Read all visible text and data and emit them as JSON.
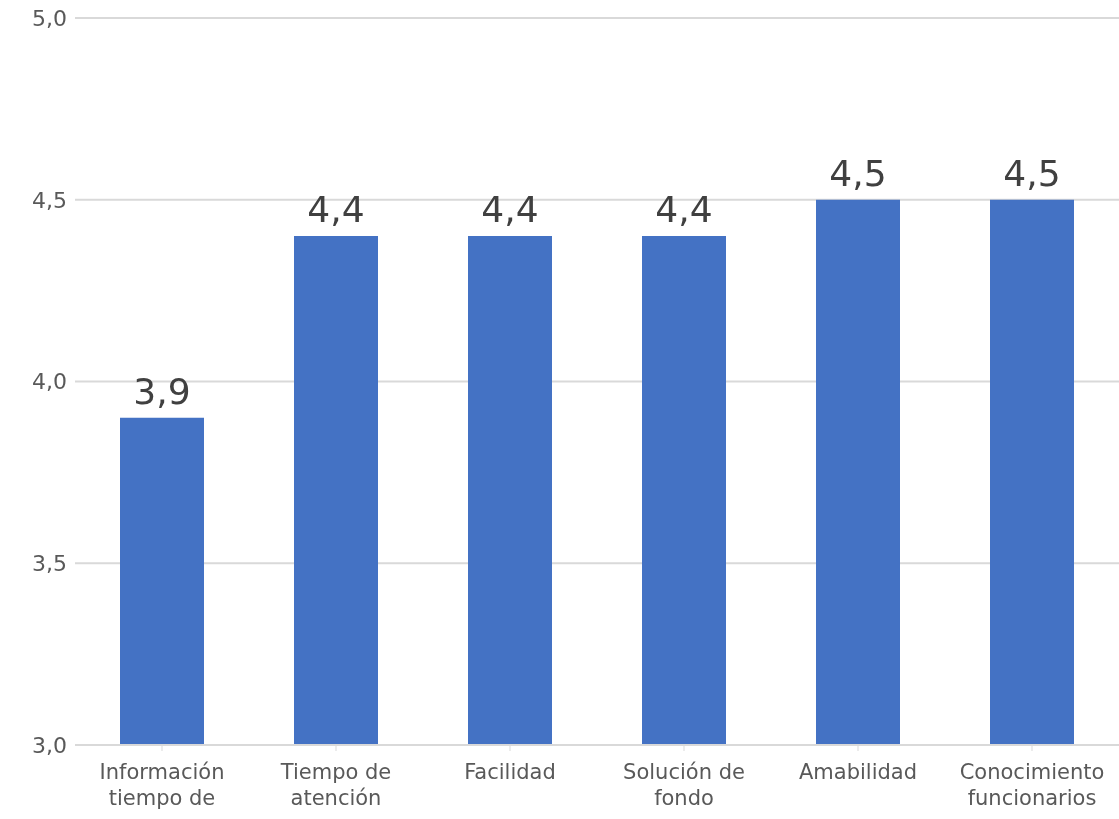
{
  "chart_data": {
    "type": "bar",
    "categories": [
      "Información tiempo de",
      "Tiempo de atención",
      "Facilidad",
      "Solución de fondo",
      "Amabilidad",
      "Conocimiento funcionarios"
    ],
    "values": [
      3.9,
      4.4,
      4.4,
      4.4,
      4.5,
      4.5
    ],
    "value_labels": [
      "3,9",
      "4,4",
      "4,4",
      "4,4",
      "4,5",
      "4,5"
    ],
    "color": "#4472c4",
    "ylim": [
      3,
      5
    ],
    "yticks": [
      {
        "value": 3,
        "label": "3,0"
      },
      {
        "value": 3.5,
        "label": "3,5"
      },
      {
        "value": 4,
        "label": "4,0"
      },
      {
        "value": 4.5,
        "label": "4,5"
      },
      {
        "value": 5,
        "label": "5,0"
      }
    ],
    "grid": "y"
  }
}
